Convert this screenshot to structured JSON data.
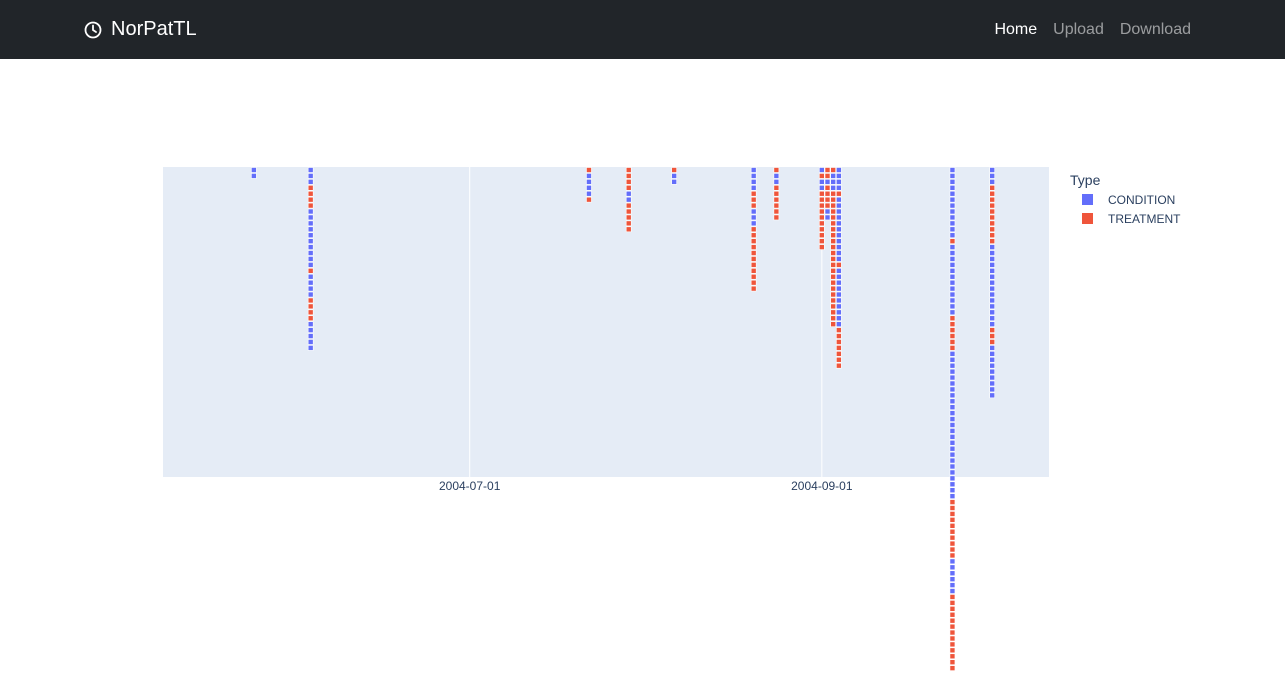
{
  "navbar": {
    "brand": "NorPatTL",
    "brand_icon": "clock-icon",
    "links": [
      {
        "label": "Home",
        "active": true
      },
      {
        "label": "Upload",
        "active": false
      },
      {
        "label": "Download",
        "active": false
      }
    ]
  },
  "chart_data": {
    "type": "scatter",
    "title": "",
    "xlabel": "",
    "ylabel": "",
    "x_axis": "date",
    "xlim": [
      "2004-05-08",
      "2004-10-11"
    ],
    "x_ticks": [
      "2004-07-01",
      "2004-09-01"
    ],
    "grid": "vertical gridlines at x ticks",
    "y_axis_visible": false,
    "legend": {
      "title": "Type",
      "placement": "right",
      "entries": [
        "CONDITION",
        "TREATMENT"
      ]
    },
    "colors": {
      "CONDITION": "#636efa",
      "TREATMENT": "#ef553b",
      "plot_bg": "#e5ecf6"
    },
    "note_marker": "square markers stacked per date; each stack lists events top to bottom",
    "stacks": [
      {
        "x": "2004-05-24",
        "events": [
          "C",
          "C"
        ]
      },
      {
        "x": "2004-06-03",
        "events": [
          "C",
          "C",
          "C",
          "T",
          "T",
          "T",
          "T",
          "C",
          "C",
          "C",
          "C",
          "C",
          "C",
          "C",
          "C",
          "C",
          "C",
          "T",
          "C",
          "C",
          "C",
          "C",
          "T",
          "T",
          "T",
          "T",
          "C",
          "C",
          "C",
          "C",
          "C"
        ]
      },
      {
        "x": "2004-07-22",
        "events": [
          "T",
          "C",
          "C",
          "C",
          "C",
          "T"
        ]
      },
      {
        "x": "2004-07-29",
        "events": [
          "T",
          "T",
          "T",
          "T",
          "C",
          "C",
          "T",
          "T",
          "T",
          "T",
          "T"
        ]
      },
      {
        "x": "2004-08-06",
        "events": [
          "T",
          "C",
          "C"
        ]
      },
      {
        "x": "2004-08-20",
        "events": [
          "C",
          "C",
          "C",
          "C",
          "T",
          "T",
          "T",
          "C",
          "C",
          "C",
          "T",
          "T",
          "T",
          "T",
          "T",
          "T",
          "T",
          "T",
          "T",
          "T",
          "T"
        ]
      },
      {
        "x": "2004-08-24",
        "events": [
          "T",
          "C",
          "C",
          "T",
          "T",
          "T",
          "T",
          "T",
          "T"
        ]
      },
      {
        "x": "2004-09-01",
        "events": [
          "C",
          "T",
          "C",
          "C",
          "T",
          "T",
          "T",
          "T",
          "T",
          "T",
          "T",
          "T",
          "T",
          "T"
        ]
      },
      {
        "x": "2004-09-02",
        "events": [
          "T",
          "T",
          "C",
          "T",
          "T",
          "T",
          "T",
          "C",
          "C"
        ]
      },
      {
        "x": "2004-09-03",
        "events": [
          "T",
          "C",
          "C",
          "C",
          "T",
          "T",
          "T",
          "T",
          "T",
          "T",
          "T",
          "T",
          "T",
          "T",
          "T",
          "T",
          "T",
          "T",
          "T",
          "T",
          "T",
          "T",
          "T",
          "T",
          "T",
          "T",
          "T"
        ]
      },
      {
        "x": "2004-09-04",
        "events": [
          "C",
          "C",
          "C",
          "C",
          "T",
          "C",
          "C",
          "C",
          "C",
          "C",
          "C",
          "C",
          "C",
          "C",
          "C",
          "C",
          "T",
          "C",
          "C",
          "C",
          "C",
          "C",
          "C",
          "C",
          "C",
          "C",
          "C",
          "T",
          "T",
          "T",
          "T",
          "T",
          "T",
          "T"
        ]
      },
      {
        "x": "2004-09-24",
        "events": [
          "C",
          "C",
          "C",
          "C",
          "C",
          "C",
          "C",
          "C",
          "C",
          "C",
          "C",
          "C",
          "T",
          "C",
          "C",
          "C",
          "C",
          "C",
          "C",
          "C",
          "C",
          "C",
          "C",
          "C",
          "C",
          "T",
          "T",
          "T",
          "T",
          "T",
          "T",
          "C",
          "C",
          "C",
          "C",
          "C",
          "C",
          "C",
          "C",
          "C",
          "C",
          "C",
          "C",
          "C",
          "C",
          "C",
          "C",
          "C",
          "C",
          "C",
          "C",
          "C",
          "C",
          "C",
          "C",
          "C",
          "T",
          "T",
          "T",
          "T",
          "T",
          "T",
          "T",
          "T",
          "T",
          "T",
          "C",
          "C",
          "C",
          "C",
          "C",
          "C",
          "T",
          "T",
          "T",
          "T",
          "T",
          "T",
          "T",
          "T",
          "T",
          "T",
          "T",
          "T",
          "T"
        ]
      },
      {
        "x": "2004-10-01",
        "events": [
          "C",
          "C",
          "C",
          "T",
          "T",
          "T",
          "T",
          "T",
          "T",
          "T",
          "T",
          "T",
          "T",
          "C",
          "C",
          "C",
          "C",
          "C",
          "C",
          "C",
          "C",
          "C",
          "C",
          "C",
          "C",
          "C",
          "C",
          "T",
          "T",
          "T",
          "C",
          "C",
          "C",
          "C",
          "C",
          "C",
          "C",
          "C",
          "C"
        ]
      }
    ]
  }
}
